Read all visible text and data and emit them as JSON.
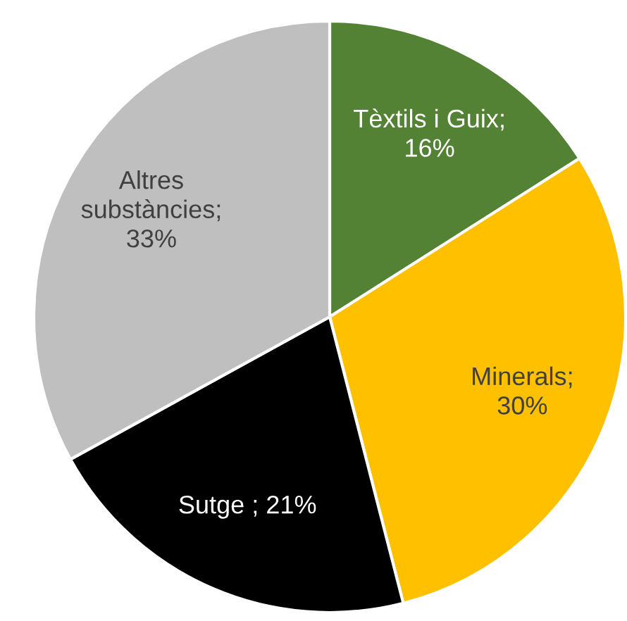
{
  "chart_data": {
    "type": "pie",
    "categories": [
      "Tèxtils i Guix;\n16%",
      "Minerals;\n30%",
      "Sutge ; 21%",
      "Altres\nsubstàncies;\n33%"
    ],
    "values": [
      16,
      30,
      21,
      33
    ],
    "colors": [
      "#548235",
      "#ffc000",
      "#000000",
      "#bfbfbf"
    ]
  }
}
